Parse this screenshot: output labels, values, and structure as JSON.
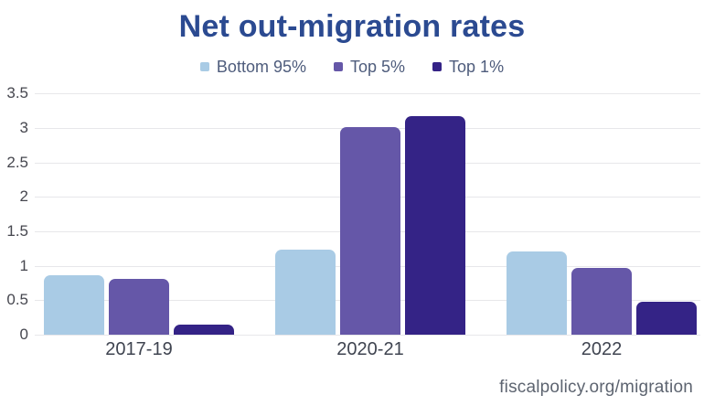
{
  "chart_data": {
    "type": "bar",
    "title": "Net out-migration rates",
    "title_color": "#2b4a91",
    "categories": [
      "2017-19",
      "2020-21",
      "2022"
    ],
    "series": [
      {
        "name": "Bottom 95%",
        "color": "#a9cbe5",
        "values": [
          0.86,
          1.23,
          1.21
        ]
      },
      {
        "name": "Top 5%",
        "color": "#6557a8",
        "values": [
          0.81,
          3.01,
          0.97
        ]
      },
      {
        "name": "Top 1%",
        "color": "#342386",
        "values": [
          0.15,
          3.17,
          0.48
        ]
      }
    ],
    "ylim": [
      0,
      3.5
    ],
    "ytick_step": 0.5,
    "yticks": [
      "3.5",
      "3",
      "2.5",
      "2",
      "1.5",
      "1",
      "0.5",
      "0"
    ],
    "grid": "horizontal",
    "gridline_color": "#e7e7ea",
    "legend_position": "top",
    "xlabel": "",
    "ylabel": ""
  },
  "footer": {
    "text": "fiscalpolicy.org/migration"
  }
}
